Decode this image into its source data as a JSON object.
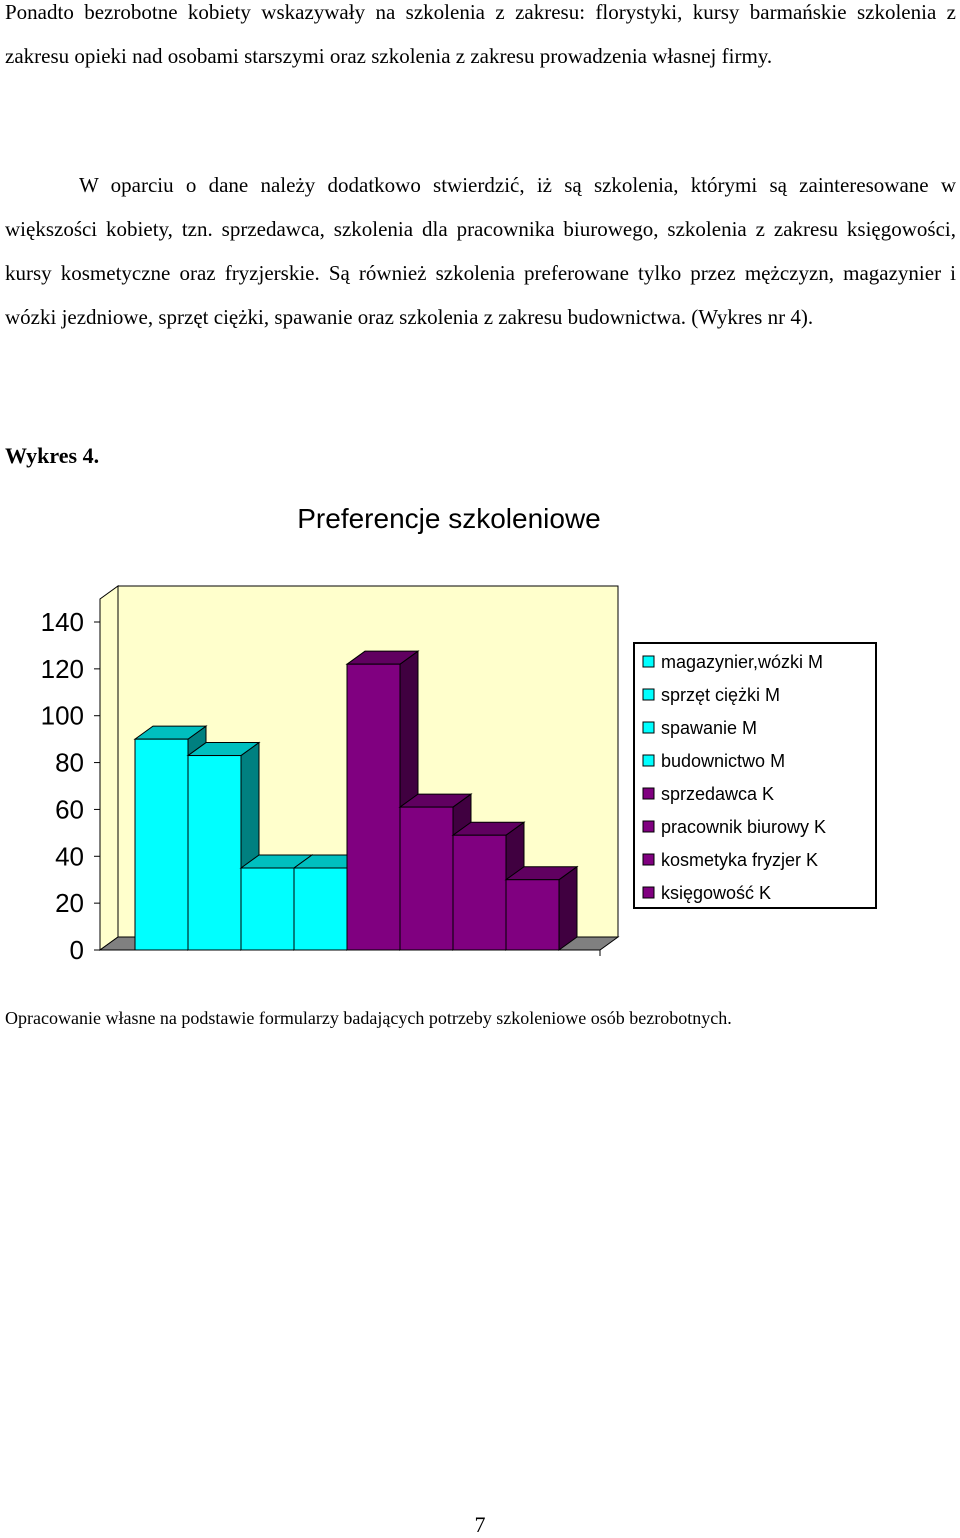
{
  "paragraphs": {
    "p1": "Ponadto bezrobotne kobiety wskazywały na szkolenia z zakresu: florystyki, kursy barmańskie szkolenia z zakresu opieki nad osobami starszymi oraz szkolenia z zakresu prowadzenia własnej firmy.",
    "p2": "W oparciu o dane należy dodatkowo stwierdzić, iż są szkolenia, którymi są zainteresowane w większości kobiety, tzn. sprzedawca, szkolenia dla pracownika biurowego, szkolenia z zakresu księgowości, kursy kosmetyczne oraz fryzjerskie. Są również szkolenia preferowane tylko przez mężczyzn, magazynier i wózki jezdniowe, sprzęt ciężki, spawanie oraz szkolenia z zakresu budownictwa. (Wykres nr 4)."
  },
  "figure_label": "Wykres 4.",
  "chart_data": {
    "type": "bar",
    "title": "Preferencje szkoleniowe",
    "xlabel": "",
    "ylabel": "",
    "ylim": [
      0,
      140
    ],
    "yticks": [
      0,
      20,
      40,
      60,
      80,
      100,
      120,
      140
    ],
    "grid": false,
    "legend_position": "right",
    "plot_background": "#ffffcc",
    "series": [
      {
        "name": "magazynier,wózki M",
        "value": 90,
        "color": "#00ffff"
      },
      {
        "name": "sprzęt ciężki M",
        "value": 83,
        "color": "#00ffff"
      },
      {
        "name": "spawanie M",
        "value": 35,
        "color": "#00ffff"
      },
      {
        "name": "budownictwo M",
        "value": 35,
        "color": "#00ffff"
      },
      {
        "name": "sprzedawca K",
        "value": 122,
        "color": "#800080"
      },
      {
        "name": "pracownik biurowy K",
        "value": 61,
        "color": "#800080"
      },
      {
        "name": "kosmetyka fryzjer K",
        "value": 49,
        "color": "#800080"
      },
      {
        "name": "księgowość K",
        "value": 30,
        "color": "#800080"
      }
    ]
  },
  "source_note": "Opracowanie własne na podstawie formularzy badających potrzeby szkoleniowe osób bezrobotnych.",
  "page_number": "7"
}
